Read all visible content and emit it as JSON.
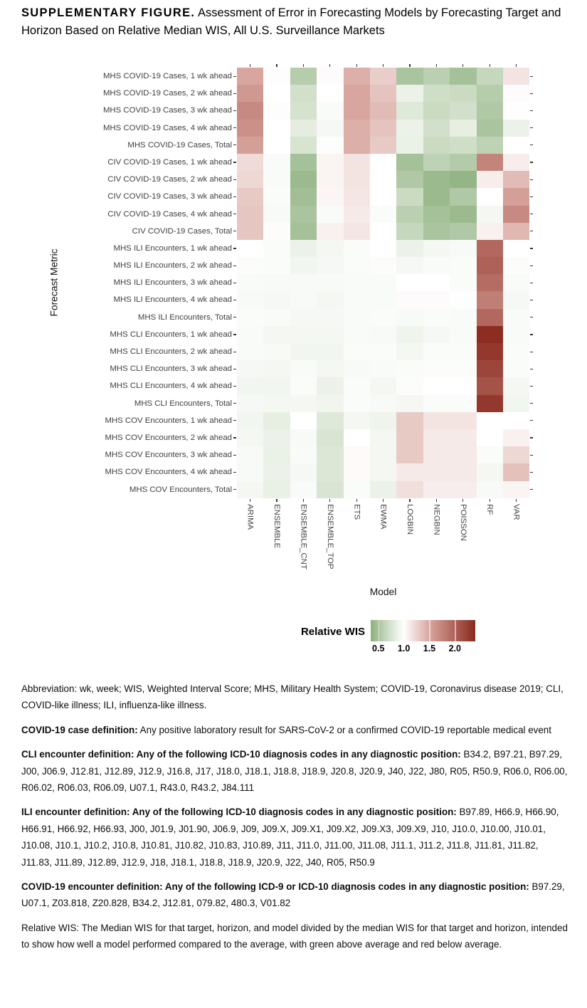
{
  "title": {
    "label": "SUPPLEMENTARY FIGURE.",
    "text": " Assessment of Error in Forecasting Models by Forecasting Target and Horizon Based on Relative Median WIS, All U.S. Surveillance Markets"
  },
  "chart_data": {
    "type": "heatmap",
    "xlabel": "Model",
    "ylabel": "Forecast Metric",
    "columns": [
      "ARIMA",
      "ENSEMBLE",
      "ENSEMBLE_CNT",
      "ENSEMBLE_TOP",
      "ETS",
      "EWMA",
      "LOGBIN",
      "NEGBIN",
      "POISSON",
      "RF",
      "VAR"
    ],
    "rows": [
      "MHS COVID-19 Cases, 1 wk ahead",
      "MHS COVID-19 Cases, 2 wk ahead",
      "MHS COVID-19 Cases, 3 wk ahead",
      "MHS COVID-19 Cases, 4 wk ahead",
      "MHS COVID-19 Cases, Total",
      "CIV COVID-19 Cases, 1 wk ahead",
      "CIV COVID-19 Cases, 2 wk ahead",
      "CIV COVID-19 Cases, 3 wk ahead",
      "CIV COVID-19 Cases, 4 wk ahead",
      "CIV COVID-19 Cases, Total",
      "MHS ILI Encounters, 1 wk ahead",
      "MHS ILI Encounters, 2 wk ahead",
      "MHS ILI Encounters, 3 wk ahead",
      "MHS ILI Encounters, 4 wk ahead",
      "MHS ILI Encounters, Total",
      "MHS CLI Encounters, 1 wk ahead",
      "MHS CLI Encounters, 2 wk ahead",
      "MHS CLI Encounters, 3 wk ahead",
      "MHS CLI Encounters, 4 wk ahead",
      "MHS CLI Encounters, Total",
      "MHS COV Encounters, 1 wk ahead",
      "MHS COV Encounters, 2 wk ahead",
      "MHS COV Encounters, 3 wk ahead",
      "MHS COV Encounters, 4 wk ahead",
      "MHS COV Encounters, Total"
    ],
    "values": [
      [
        1.5,
        1.01,
        0.58,
        1.02,
        1.45,
        1.28,
        0.52,
        0.6,
        0.5,
        0.65,
        1.15
      ],
      [
        1.6,
        1.0,
        0.72,
        1.0,
        1.5,
        1.33,
        0.88,
        0.7,
        0.68,
        0.58,
        1.02
      ],
      [
        1.7,
        1.01,
        0.74,
        0.96,
        1.5,
        1.38,
        0.8,
        0.68,
        0.72,
        0.55,
        0.99
      ],
      [
        1.65,
        1.0,
        0.84,
        0.94,
        1.45,
        1.33,
        0.88,
        0.72,
        0.85,
        0.52,
        0.88
      ],
      [
        1.55,
        1.0,
        0.75,
        1.01,
        1.45,
        1.3,
        0.87,
        0.68,
        0.7,
        0.62,
        1.0
      ],
      [
        1.2,
        0.96,
        0.5,
        1.06,
        1.15,
        1.0,
        0.5,
        0.62,
        0.57,
        1.75,
        1.1
      ],
      [
        1.22,
        0.96,
        0.45,
        1.06,
        1.15,
        1.0,
        0.55,
        0.45,
        0.42,
        1.1,
        1.38
      ],
      [
        1.3,
        0.97,
        0.48,
        1.05,
        1.14,
        1.0,
        0.68,
        0.45,
        0.55,
        1.0,
        1.55
      ],
      [
        1.32,
        0.95,
        0.52,
        0.96,
        1.12,
        0.97,
        0.6,
        0.5,
        0.45,
        0.93,
        1.7
      ],
      [
        1.32,
        0.98,
        0.5,
        1.08,
        1.14,
        1.0,
        0.65,
        0.52,
        0.55,
        1.08,
        1.4
      ],
      [
        1.0,
        0.97,
        0.88,
        0.93,
        0.97,
        1.0,
        0.88,
        0.93,
        0.95,
        1.95,
        1.0
      ],
      [
        0.98,
        0.97,
        0.92,
        0.94,
        0.97,
        0.98,
        0.94,
        0.96,
        0.97,
        2.0,
        0.98
      ],
      [
        0.96,
        0.95,
        0.95,
        0.95,
        0.96,
        0.96,
        1.0,
        1.0,
        0.97,
        1.92,
        0.96
      ],
      [
        0.95,
        0.94,
        0.95,
        0.93,
        0.96,
        0.96,
        1.02,
        1.02,
        0.99,
        1.78,
        0.94
      ],
      [
        0.97,
        0.96,
        0.94,
        0.94,
        0.96,
        0.97,
        0.95,
        0.97,
        0.96,
        1.95,
        0.96
      ],
      [
        0.96,
        0.93,
        0.93,
        0.93,
        0.96,
        0.95,
        0.9,
        0.94,
        0.96,
        2.38,
        0.96
      ],
      [
        0.96,
        0.95,
        0.92,
        0.92,
        0.97,
        0.97,
        0.93,
        0.97,
        0.97,
        2.3,
        0.97
      ],
      [
        0.94,
        0.93,
        0.96,
        0.93,
        0.95,
        0.96,
        0.97,
        0.98,
        0.98,
        2.2,
        0.97
      ],
      [
        0.92,
        0.92,
        0.97,
        0.88,
        0.97,
        0.93,
        0.98,
        1.0,
        1.0,
        2.1,
        0.93
      ],
      [
        0.94,
        0.93,
        0.93,
        0.91,
        0.97,
        0.95,
        0.93,
        0.97,
        0.97,
        2.3,
        0.92
      ],
      [
        0.92,
        0.85,
        1.0,
        0.8,
        0.93,
        0.9,
        1.3,
        1.15,
        1.15,
        1.0,
        1.0
      ],
      [
        0.93,
        0.88,
        0.95,
        0.76,
        1.0,
        0.93,
        1.3,
        1.12,
        1.12,
        1.0,
        1.08
      ],
      [
        0.95,
        0.87,
        0.96,
        0.78,
        1.03,
        0.93,
        1.3,
        1.12,
        1.12,
        0.97,
        1.22
      ],
      [
        0.95,
        0.88,
        0.94,
        0.78,
        1.03,
        0.93,
        1.12,
        1.12,
        1.12,
        0.93,
        1.35
      ],
      [
        0.93,
        0.86,
        0.96,
        0.76,
        0.97,
        0.88,
        1.18,
        1.1,
        1.1,
        0.95,
        1.06
      ]
    ],
    "legend": {
      "title": "Relative WIS",
      "ticks": [
        "0.5",
        "1.0",
        "1.5",
        "2.0"
      ],
      "tick_values": [
        0.5,
        1.0,
        1.5,
        2.0
      ],
      "domain": [
        0.35,
        2.4
      ],
      "gradient_stops": [
        {
          "pos": 0,
          "color": "#8cb07e"
        },
        {
          "pos": 0.171,
          "color": "#cfdec7"
        },
        {
          "pos": 0.317,
          "color": "#ffffff"
        },
        {
          "pos": 0.561,
          "color": "#d8a69e"
        },
        {
          "pos": 1,
          "color": "#8b2a1f"
        }
      ]
    },
    "colormap": {
      "green_end": "#8cb07e",
      "green_mid": "#cfdec7",
      "white_mid": "#ffffff",
      "red_mid": "#d8a69e",
      "red_end": "#8b2a1f"
    },
    "grid": "off",
    "legend_position": "bottom"
  },
  "footnotes": [
    [
      {
        "b": 0,
        "t": "Abbreviation: wk, week; WIS, Weighted Interval Score; MHS, Military Health System; COVID-19, Coronavirus disease 2019; CLI, COVID-like illness; ILI, influenza-like illness."
      }
    ],
    [
      {
        "b": 1,
        "t": "COVID-19 case definition:"
      },
      {
        "b": 0,
        "t": " Any positive laboratory result for SARS-CoV-2 or a confirmed COVID-19 reportable medical event"
      }
    ],
    [
      {
        "b": 1,
        "t": "CLI encounter definition: Any of the following ICD-10 diagnosis codes in any diagnostic position:"
      },
      {
        "b": 0,
        "t": " B34.2, B97.21, B97.29, J00, J06.9, J12.81, J12.89, J12.9, J16.8, J17, J18.0, J18.1, J18.8, J18.9, J20.8, J20.9, J40, J22, J80, R05, R50.9, R06.0, R06.00, R06.02, R06.03, R06.09, U07.1, R43.0, R43.2, J84.111"
      }
    ],
    [
      {
        "b": 1,
        "t": "ILI encounter definition: Any of the following ICD-10 diagnosis codes in any diagnostic position:"
      },
      {
        "b": 0,
        "t": " B97.89, H66.9, H66.90, H66.91, H66.92, H66.93, J00, J01.9, J01.90, J06.9, J09, J09.X, J09.X1, J09.X2, J09.X3, J09.X9, J10, J10.0, J10.00, J10.01, J10.08, J10.1, J10.2, J10.8, J10.81, J10.82, J10.83, J10.89, J11, J11.0, J11.00, J11.08, J11.1, J11.2, J11.8, J11.81, J11.82, J11.83, J11.89, J12.89, J12.9, J18, J18.1, J18.8, J18.9, J20.9, J22, J40, R05, R50.9"
      }
    ],
    [
      {
        "b": 1,
        "t": "COVID-19 encounter definition: Any of the following ICD-9 or ICD-10 diagnosis codes in any diagnostic position:"
      },
      {
        "b": 0,
        "t": " B97.29, U07.1, Z03.818, Z20.828, B34.2, J12.81, 079.82, 480.3, V01.82"
      }
    ],
    [
      {
        "b": 0,
        "t": "Relative WIS: The Median WIS for that target, horizon, and model divided by the median WIS for that target and horizon, intended to show how well a model performed compared to the average, with green above average and red below average."
      }
    ]
  ]
}
